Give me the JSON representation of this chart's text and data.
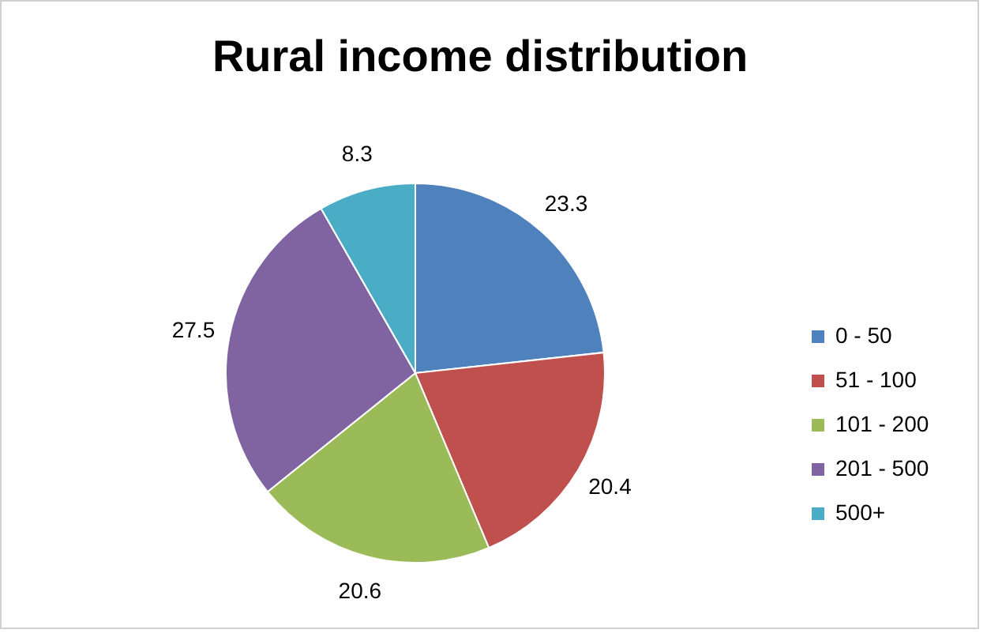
{
  "chart_data": {
    "type": "pie",
    "title": "Rural income distribution",
    "categories": [
      "0 - 50",
      "51 - 100",
      "101 - 200",
      "201 - 500",
      "500+"
    ],
    "values": [
      23.3,
      20.4,
      20.6,
      27.5,
      8.3
    ],
    "colors": [
      "#4f81bd",
      "#c0504d",
      "#9bbb59",
      "#8064a2",
      "#4bacc6"
    ],
    "data_labels": true,
    "legend": "right"
  }
}
